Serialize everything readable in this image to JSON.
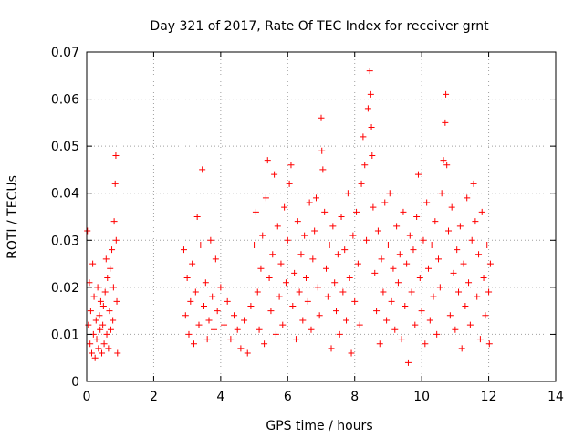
{
  "chart_data": {
    "type": "scatter",
    "title": "Day 321 of 2017, Rate Of TEC Index for receiver grnt",
    "xlabel": "GPS time / hours",
    "ylabel": "ROTI / TECUs",
    "xlim": [
      0,
      14
    ],
    "ylim": [
      0,
      0.07
    ],
    "x_ticks": [
      0,
      2,
      4,
      6,
      8,
      10,
      12,
      14
    ],
    "x_tick_labels": [
      "0",
      "2",
      "4",
      "6",
      "8",
      "10",
      "12",
      "14"
    ],
    "y_ticks": [
      0,
      0.01,
      0.02,
      0.03,
      0.04,
      0.05,
      0.06,
      0.07
    ],
    "y_tick_labels": [
      "0",
      "0.01",
      "0.02",
      "0.03",
      "0.04",
      "0.05",
      "0.06",
      "0.07"
    ],
    "grid": true,
    "marker": "+",
    "series": [
      {
        "name": "ROTI",
        "color": "#ff0000",
        "points": [
          [
            0.02,
            0.032
          ],
          [
            0.05,
            0.012
          ],
          [
            0.08,
            0.021
          ],
          [
            0.1,
            0.008
          ],
          [
            0.12,
            0.015
          ],
          [
            0.15,
            0.006
          ],
          [
            0.18,
            0.025
          ],
          [
            0.2,
            0.01
          ],
          [
            0.22,
            0.018
          ],
          [
            0.25,
            0.005
          ],
          [
            0.28,
            0.013
          ],
          [
            0.3,
            0.009
          ],
          [
            0.33,
            0.02
          ],
          [
            0.35,
            0.007
          ],
          [
            0.38,
            0.014
          ],
          [
            0.4,
            0.011
          ],
          [
            0.42,
            0.017
          ],
          [
            0.45,
            0.006
          ],
          [
            0.48,
            0.012
          ],
          [
            0.5,
            0.016
          ],
          [
            0.52,
            0.008
          ],
          [
            0.55,
            0.019
          ],
          [
            0.58,
            0.026
          ],
          [
            0.6,
            0.01
          ],
          [
            0.62,
            0.022
          ],
          [
            0.65,
            0.007
          ],
          [
            0.68,
            0.015
          ],
          [
            0.7,
            0.024
          ],
          [
            0.72,
            0.011
          ],
          [
            0.75,
            0.028
          ],
          [
            0.78,
            0.013
          ],
          [
            0.8,
            0.02
          ],
          [
            0.82,
            0.034
          ],
          [
            0.85,
            0.042
          ],
          [
            0.87,
            0.048
          ],
          [
            0.88,
            0.03
          ],
          [
            0.9,
            0.017
          ],
          [
            0.92,
            0.006
          ],
          [
            2.9,
            0.028
          ],
          [
            2.95,
            0.014
          ],
          [
            3.0,
            0.022
          ],
          [
            3.05,
            0.01
          ],
          [
            3.1,
            0.017
          ],
          [
            3.15,
            0.025
          ],
          [
            3.2,
            0.008
          ],
          [
            3.25,
            0.019
          ],
          [
            3.3,
            0.035
          ],
          [
            3.35,
            0.012
          ],
          [
            3.4,
            0.029
          ],
          [
            3.45,
            0.045
          ],
          [
            3.5,
            0.016
          ],
          [
            3.55,
            0.021
          ],
          [
            3.6,
            0.009
          ],
          [
            3.65,
            0.013
          ],
          [
            3.7,
            0.03
          ],
          [
            3.75,
            0.018
          ],
          [
            3.8,
            0.011
          ],
          [
            3.85,
            0.026
          ],
          [
            3.9,
            0.015
          ],
          [
            4.0,
            0.02
          ],
          [
            4.1,
            0.012
          ],
          [
            4.2,
            0.017
          ],
          [
            4.3,
            0.009
          ],
          [
            4.4,
            0.014
          ],
          [
            4.5,
            0.011
          ],
          [
            4.6,
            0.007
          ],
          [
            4.7,
            0.013
          ],
          [
            4.8,
            0.006
          ],
          [
            4.9,
            0.016
          ],
          [
            5.0,
            0.029
          ],
          [
            5.05,
            0.036
          ],
          [
            5.1,
            0.019
          ],
          [
            5.15,
            0.011
          ],
          [
            5.2,
            0.024
          ],
          [
            5.25,
            0.031
          ],
          [
            5.3,
            0.008
          ],
          [
            5.35,
            0.039
          ],
          [
            5.4,
            0.047
          ],
          [
            5.45,
            0.022
          ],
          [
            5.5,
            0.015
          ],
          [
            5.55,
            0.027
          ],
          [
            5.6,
            0.044
          ],
          [
            5.65,
            0.01
          ],
          [
            5.7,
            0.033
          ],
          [
            5.75,
            0.018
          ],
          [
            5.8,
            0.025
          ],
          [
            5.85,
            0.012
          ],
          [
            5.9,
            0.037
          ],
          [
            5.95,
            0.021
          ],
          [
            6.0,
            0.03
          ],
          [
            6.05,
            0.042
          ],
          [
            6.1,
            0.046
          ],
          [
            6.15,
            0.016
          ],
          [
            6.2,
            0.023
          ],
          [
            6.25,
            0.009
          ],
          [
            6.3,
            0.034
          ],
          [
            6.35,
            0.019
          ],
          [
            6.4,
            0.027
          ],
          [
            6.45,
            0.013
          ],
          [
            6.5,
            0.031
          ],
          [
            6.55,
            0.022
          ],
          [
            6.6,
            0.017
          ],
          [
            6.65,
            0.038
          ],
          [
            6.7,
            0.011
          ],
          [
            6.75,
            0.026
          ],
          [
            6.8,
            0.032
          ],
          [
            6.85,
            0.039
          ],
          [
            6.9,
            0.02
          ],
          [
            6.95,
            0.014
          ],
          [
            7.0,
            0.056
          ],
          [
            7.02,
            0.049
          ],
          [
            7.05,
            0.045
          ],
          [
            7.1,
            0.036
          ],
          [
            7.15,
            0.024
          ],
          [
            7.2,
            0.018
          ],
          [
            7.25,
            0.029
          ],
          [
            7.3,
            0.007
          ],
          [
            7.35,
            0.033
          ],
          [
            7.4,
            0.021
          ],
          [
            7.45,
            0.015
          ],
          [
            7.5,
            0.027
          ],
          [
            7.55,
            0.01
          ],
          [
            7.6,
            0.035
          ],
          [
            7.65,
            0.019
          ],
          [
            7.7,
            0.028
          ],
          [
            7.75,
            0.013
          ],
          [
            7.8,
            0.04
          ],
          [
            7.85,
            0.022
          ],
          [
            7.9,
            0.006
          ],
          [
            7.95,
            0.031
          ],
          [
            8.0,
            0.017
          ],
          [
            8.05,
            0.036
          ],
          [
            8.1,
            0.025
          ],
          [
            8.15,
            0.012
          ],
          [
            8.2,
            0.042
          ],
          [
            8.25,
            0.052
          ],
          [
            8.3,
            0.046
          ],
          [
            8.35,
            0.03
          ],
          [
            8.4,
            0.058
          ],
          [
            8.45,
            0.066
          ],
          [
            8.48,
            0.061
          ],
          [
            8.5,
            0.054
          ],
          [
            8.52,
            0.048
          ],
          [
            8.55,
            0.037
          ],
          [
            8.6,
            0.023
          ],
          [
            8.65,
            0.015
          ],
          [
            8.7,
            0.032
          ],
          [
            8.75,
            0.008
          ],
          [
            8.8,
            0.026
          ],
          [
            8.85,
            0.019
          ],
          [
            8.9,
            0.038
          ],
          [
            8.95,
            0.013
          ],
          [
            9.0,
            0.029
          ],
          [
            9.05,
            0.04
          ],
          [
            9.1,
            0.017
          ],
          [
            9.15,
            0.024
          ],
          [
            9.2,
            0.011
          ],
          [
            9.25,
            0.033
          ],
          [
            9.3,
            0.021
          ],
          [
            9.35,
            0.027
          ],
          [
            9.4,
            0.009
          ],
          [
            9.45,
            0.036
          ],
          [
            9.5,
            0.016
          ],
          [
            9.55,
            0.025
          ],
          [
            9.6,
            0.004
          ],
          [
            9.65,
            0.031
          ],
          [
            9.7,
            0.019
          ],
          [
            9.75,
            0.028
          ],
          [
            9.8,
            0.012
          ],
          [
            9.85,
            0.035
          ],
          [
            9.9,
            0.044
          ],
          [
            9.95,
            0.022
          ],
          [
            10.0,
            0.015
          ],
          [
            10.05,
            0.03
          ],
          [
            10.1,
            0.008
          ],
          [
            10.15,
            0.038
          ],
          [
            10.2,
            0.024
          ],
          [
            10.25,
            0.013
          ],
          [
            10.3,
            0.029
          ],
          [
            10.35,
            0.018
          ],
          [
            10.4,
            0.034
          ],
          [
            10.45,
            0.01
          ],
          [
            10.5,
            0.026
          ],
          [
            10.55,
            0.02
          ],
          [
            10.6,
            0.04
          ],
          [
            10.65,
            0.047
          ],
          [
            10.7,
            0.055
          ],
          [
            10.72,
            0.061
          ],
          [
            10.75,
            0.046
          ],
          [
            10.8,
            0.032
          ],
          [
            10.85,
            0.014
          ],
          [
            10.9,
            0.037
          ],
          [
            10.95,
            0.023
          ],
          [
            11.0,
            0.011
          ],
          [
            11.05,
            0.028
          ],
          [
            11.1,
            0.019
          ],
          [
            11.15,
            0.033
          ],
          [
            11.2,
            0.007
          ],
          [
            11.25,
            0.025
          ],
          [
            11.3,
            0.016
          ],
          [
            11.35,
            0.039
          ],
          [
            11.4,
            0.021
          ],
          [
            11.45,
            0.012
          ],
          [
            11.5,
            0.03
          ],
          [
            11.55,
            0.042
          ],
          [
            11.6,
            0.034
          ],
          [
            11.65,
            0.018
          ],
          [
            11.7,
            0.027
          ],
          [
            11.75,
            0.009
          ],
          [
            11.8,
            0.036
          ],
          [
            11.85,
            0.022
          ],
          [
            11.9,
            0.014
          ],
          [
            11.95,
            0.029
          ],
          [
            12.0,
            0.019
          ],
          [
            12.02,
            0.008
          ],
          [
            12.05,
            0.025
          ]
        ]
      }
    ]
  }
}
